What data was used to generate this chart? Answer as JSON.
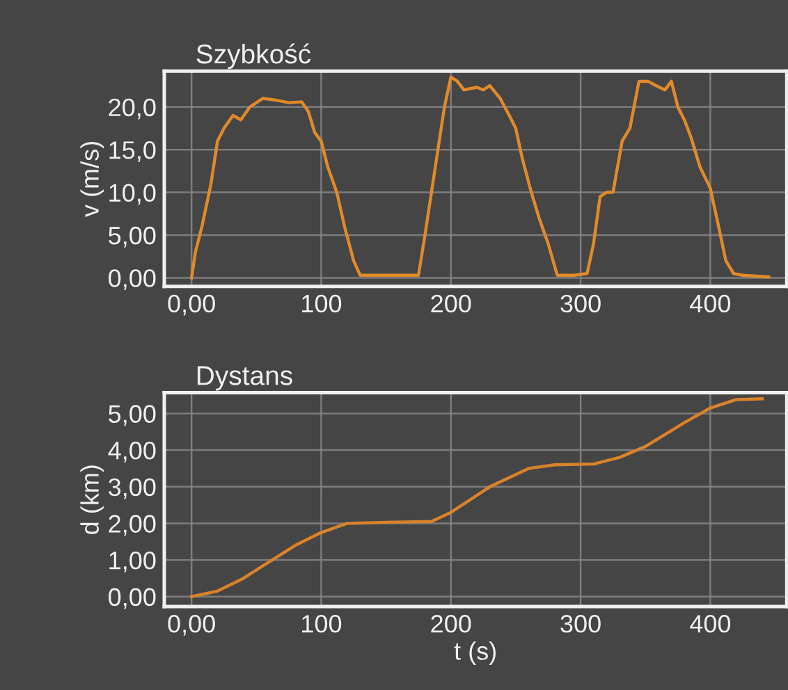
{
  "chart_data": [
    {
      "type": "line",
      "title": "Szybkość",
      "ylabel": "v (m/s)",
      "x": [
        0,
        3,
        8,
        15,
        20,
        25,
        32,
        38,
        45,
        55,
        65,
        75,
        85,
        90,
        95,
        100,
        105,
        112,
        118,
        125,
        130,
        150,
        175,
        180,
        185,
        190,
        195,
        200,
        205,
        210,
        220,
        225,
        230,
        238,
        245,
        250,
        255,
        262,
        268,
        275,
        282,
        295,
        305,
        310,
        315,
        320,
        325,
        332,
        338,
        345,
        352,
        358,
        365,
        370,
        375,
        380,
        385,
        392,
        400,
        405,
        412,
        418,
        425,
        445
      ],
      "series": [
        {
          "color": "#e08a2a",
          "values": [
            0,
            3,
            6,
            11,
            16,
            17.5,
            19,
            18.5,
            20,
            21,
            20.8,
            20.5,
            20.6,
            19.5,
            17,
            16,
            13,
            10,
            6,
            2,
            0.3,
            0.3,
            0.3,
            5,
            10,
            15,
            20,
            23.5,
            23,
            22,
            22.3,
            22,
            22.5,
            21,
            19,
            17.5,
            14,
            10,
            7,
            4,
            0.3,
            0.3,
            0.5,
            4,
            9.5,
            10,
            10,
            16,
            17.5,
            23,
            23,
            22.5,
            22,
            23,
            20,
            18.5,
            16.5,
            13,
            10.5,
            7,
            2,
            0.5,
            0.3,
            0.1
          ]
        }
      ],
      "xlim": [
        -21,
        459
      ],
      "ylim": [
        -1,
        24.2
      ],
      "xticks": [
        {
          "value": 0,
          "label": "0,00"
        },
        100,
        200,
        300,
        400
      ],
      "yticks": [
        {
          "value": 0,
          "label": "0,00"
        },
        {
          "value": 5,
          "label": "5,00"
        },
        {
          "value": 10,
          "label": "10,0"
        },
        {
          "value": 15,
          "label": "15,0"
        },
        {
          "value": 20,
          "label": "20,0"
        }
      ],
      "grid": true,
      "legend": false
    },
    {
      "type": "line",
      "title": "Dystans",
      "ylabel": "d (km)",
      "xlabel": "t (s)",
      "x": [
        0,
        20,
        40,
        60,
        80,
        100,
        120,
        150,
        185,
        200,
        230,
        260,
        280,
        310,
        330,
        350,
        380,
        400,
        420,
        440
      ],
      "series": [
        {
          "color": "#d9822b",
          "values": [
            0,
            0.15,
            0.5,
            0.95,
            1.4,
            1.75,
            2.0,
            2.03,
            2.05,
            2.3,
            3.0,
            3.5,
            3.6,
            3.62,
            3.8,
            4.1,
            4.75,
            5.15,
            5.38,
            5.4
          ]
        }
      ],
      "xlim": [
        -21,
        459
      ],
      "ylim": [
        -0.27,
        5.57
      ],
      "xticks": [
        {
          "value": 0,
          "label": "0,00"
        },
        100,
        200,
        300,
        400
      ],
      "yticks": [
        {
          "value": 0,
          "label": "0,00"
        },
        {
          "value": 1,
          "label": "1,00"
        },
        {
          "value": 2,
          "label": "2,00"
        },
        {
          "value": 3,
          "label": "3,00"
        },
        {
          "value": 4,
          "label": "4,00"
        },
        {
          "value": 5,
          "label": "5,00"
        }
      ],
      "grid": true,
      "legend": false
    }
  ]
}
